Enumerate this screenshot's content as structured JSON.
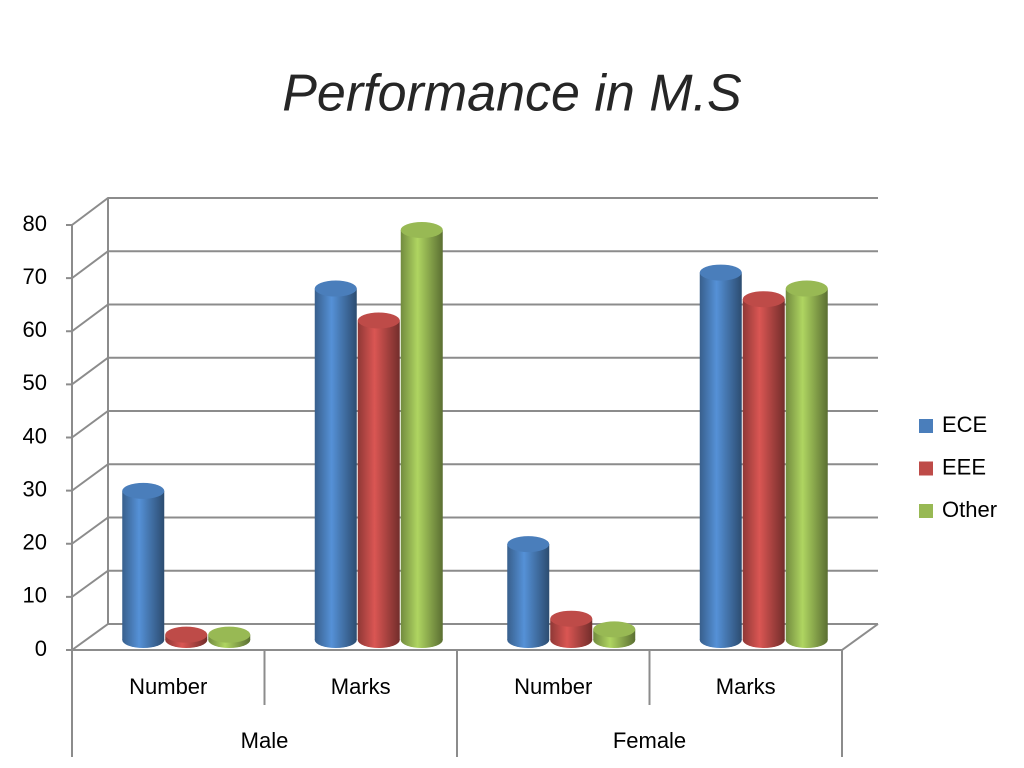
{
  "chart_data": {
    "type": "bar",
    "title": "Performance in M.S",
    "categories": [
      "Number",
      "Marks",
      "Number",
      "Marks"
    ],
    "groups": [
      "Male",
      "Female"
    ],
    "series": [
      {
        "name": "ECE",
        "color": "#4a7ebb",
        "values": [
          28,
          66,
          18,
          69
        ]
      },
      {
        "name": "EEE",
        "color": "#be4b48",
        "values": [
          1,
          60,
          4,
          64
        ]
      },
      {
        "name": "Other",
        "color": "#98b954",
        "values": [
          1,
          77,
          2,
          66
        ]
      }
    ],
    "ylim": [
      0,
      80
    ],
    "yticks": [
      0,
      10,
      20,
      30,
      40,
      50,
      60,
      70,
      80
    ],
    "grid": true,
    "legend": "right"
  }
}
